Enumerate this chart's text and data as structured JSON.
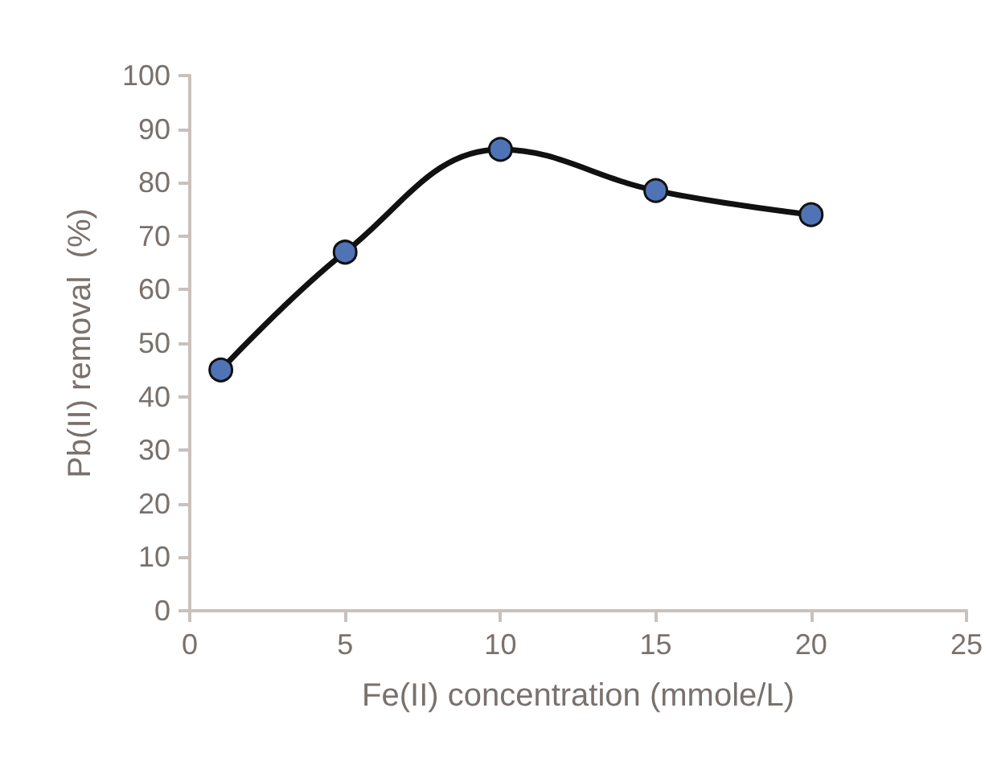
{
  "chart_data": {
    "type": "line",
    "xlabel": "Fe(II) concentration (mmole/L)",
    "ylabel": "Pb(II) removal  (%)",
    "x": [
      1,
      5,
      10,
      15,
      20
    ],
    "series": [
      {
        "color": "#111111",
        "values": [
          45,
          67,
          86.2,
          78.5,
          74
        ]
      }
    ],
    "marker": "circle",
    "line_style": "solid",
    "xlim": [
      0,
      25
    ],
    "xticks": [
      0,
      5,
      10,
      15,
      20,
      25
    ],
    "ylim": [
      0,
      100
    ],
    "yticks": [
      0,
      10,
      20,
      30,
      40,
      50,
      60,
      70,
      80,
      90,
      100
    ],
    "grid": false
  }
}
